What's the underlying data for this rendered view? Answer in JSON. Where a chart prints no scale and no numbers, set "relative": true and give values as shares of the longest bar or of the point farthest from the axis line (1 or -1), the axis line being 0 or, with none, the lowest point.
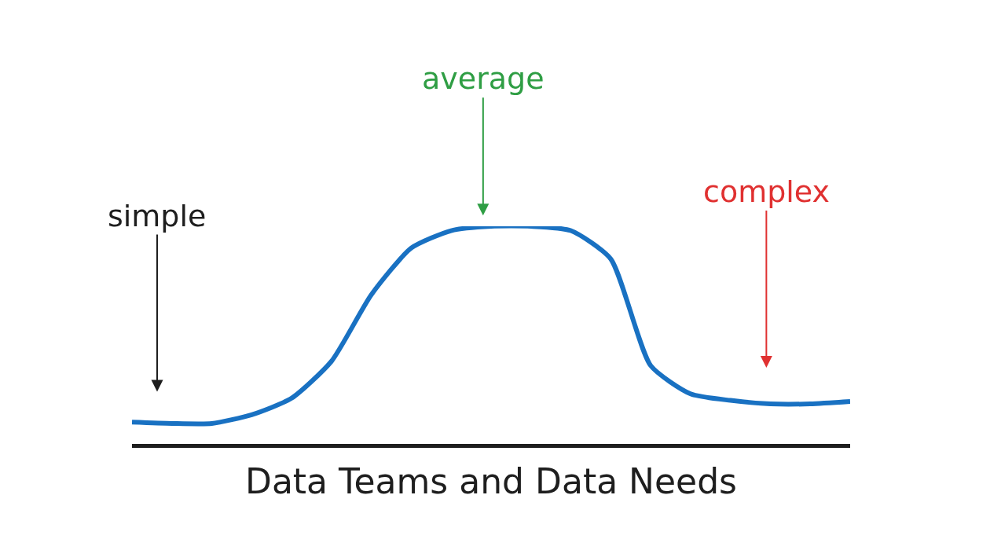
{
  "chart_data": {
    "type": "line",
    "relative": true,
    "xlabel": "Data Teams and Data Needs",
    "categories": [
      null,
      null,
      null,
      null,
      null,
      null,
      null,
      null,
      null,
      null,
      null,
      null,
      null,
      null,
      null,
      null,
      null,
      null,
      null
    ],
    "series": [
      {
        "color": "#1971c2",
        "values": [
          0.1,
          0.094,
          0.094,
          0.134,
          0.21,
          0.38,
          0.686,
          0.9,
          0.98,
          1.0,
          1.0,
          0.98,
          0.85,
          0.36,
          0.23,
          0.2,
          0.184,
          0.184,
          0.195
        ]
      }
    ],
    "annotations": [
      "simple",
      "average",
      "complex"
    ],
    "legend": false,
    "marker": "none",
    "line_style": "solid",
    "tick_labels": false
  }
}
